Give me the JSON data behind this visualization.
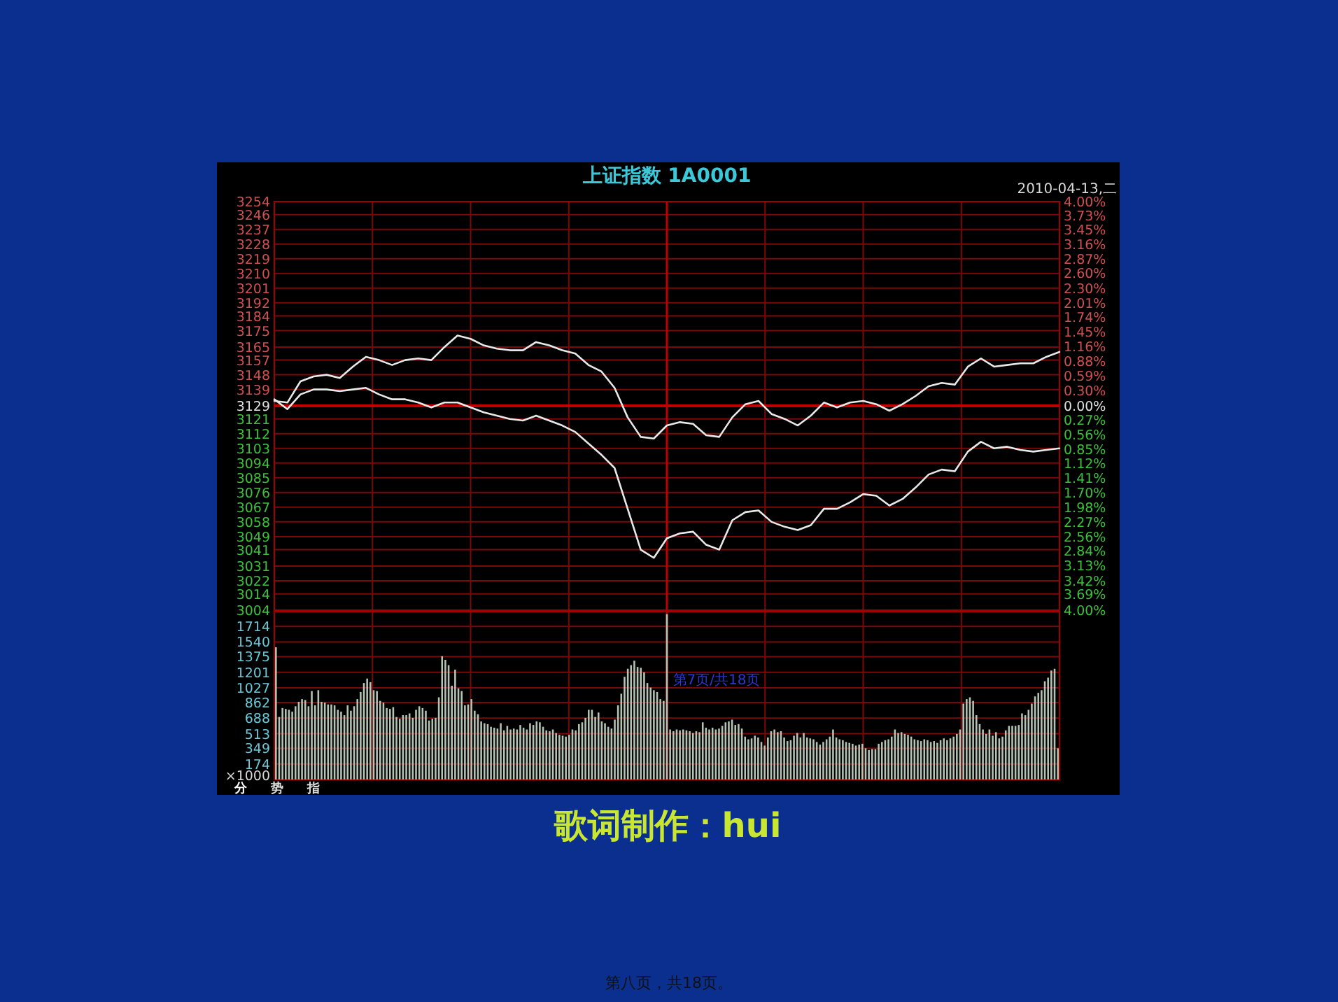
{
  "chart_data": [
    {
      "type": "line",
      "title": "上证指数 1A0001",
      "subtitle": "2010-04-13,二",
      "grid": true,
      "categories": [
        null,
        null,
        null,
        null,
        null,
        null,
        null,
        null,
        null,
        null,
        null,
        null,
        null,
        null,
        null,
        null,
        null,
        null,
        null,
        null,
        null,
        null,
        null,
        null,
        null,
        null,
        null,
        null,
        null,
        null,
        null,
        null,
        null,
        null,
        null,
        null,
        null,
        null,
        null,
        null,
        null,
        null,
        null,
        null,
        null,
        null,
        null,
        null,
        null,
        null,
        null,
        null,
        null,
        null,
        null,
        null,
        null,
        null,
        null,
        null,
        null
      ],
      "ylim": [
        3004,
        3254
      ],
      "yticks": [
        3254,
        3246,
        3237,
        3228,
        3219,
        3210,
        3201,
        3192,
        3184,
        3175,
        3165,
        3157,
        3148,
        3139,
        3129,
        3121,
        3112,
        3103,
        3094,
        3085,
        3076,
        3067,
        3058,
        3049,
        3041,
        3031,
        3022,
        3014,
        3004
      ],
      "y2lim": [
        -4,
        4
      ],
      "y2ticks": [
        {
          "value": 4,
          "label": "4.00%"
        },
        {
          "value": 3.73,
          "label": "3.73%"
        },
        {
          "value": 3.45,
          "label": "3.45%"
        },
        {
          "value": 3.16,
          "label": "3.16%"
        },
        {
          "value": 2.87,
          "label": "2.87%"
        },
        {
          "value": 2.6,
          "label": "2.60%"
        },
        {
          "value": 2.3,
          "label": "2.30%"
        },
        {
          "value": 2.01,
          "label": "2.01%"
        },
        {
          "value": 1.74,
          "label": "1.74%"
        },
        {
          "value": 1.45,
          "label": "1.45%"
        },
        {
          "value": 1.16,
          "label": "1.16%"
        },
        {
          "value": 0.88,
          "label": "0.88%"
        },
        {
          "value": 0.59,
          "label": "0.59%"
        },
        {
          "value": 0.3,
          "label": "0.30%"
        },
        {
          "value": 0,
          "label": "0.00%"
        },
        {
          "value": -0.27,
          "label": "0.27%"
        },
        {
          "value": -0.56,
          "label": "0.56%"
        },
        {
          "value": -0.85,
          "label": "0.85%"
        },
        {
          "value": -1.12,
          "label": "1.12%"
        },
        {
          "value": -1.41,
          "label": "1.41%"
        },
        {
          "value": -1.7,
          "label": "1.70%"
        },
        {
          "value": -1.98,
          "label": "1.98%"
        },
        {
          "value": -2.27,
          "label": "2.27%"
        },
        {
          "value": -2.56,
          "label": "2.56%"
        },
        {
          "value": -2.84,
          "label": "2.84%"
        },
        {
          "value": -3.13,
          "label": "3.13%"
        },
        {
          "value": -3.42,
          "label": "3.42%"
        },
        {
          "value": -3.69,
          "label": "3.69%"
        },
        {
          "value": -4,
          "label": "4.00%"
        }
      ],
      "ref_lines": [
        {
          "axis": "y",
          "value": 3129,
          "color": "#c00000"
        }
      ],
      "series": [
        {
          "color": "#e8e8e8",
          "values": [
            3132,
            3131,
            3144,
            3147,
            3148,
            3146,
            3153,
            3159,
            3157,
            3154,
            3157,
            3158,
            3157,
            3165,
            3172,
            3170,
            3166,
            3164,
            3163,
            3163,
            3168,
            3166,
            3163,
            3161,
            3154,
            3150,
            3140,
            3122,
            3110,
            3109,
            3117,
            3119,
            3118,
            3111,
            3110,
            3122,
            3130,
            3132,
            3124,
            3121,
            3117,
            3123,
            3131,
            3128,
            3131,
            3132,
            3130,
            3126,
            3130,
            3135,
            3141,
            3143,
            3142,
            3153,
            3158,
            3153,
            3154,
            3155,
            3155,
            3159,
            3162
          ]
        },
        {
          "color": "#e8e8e8",
          "values": [
            3133,
            3127,
            3136,
            3139,
            3139,
            3138,
            3139,
            3140,
            3136,
            3133,
            3133,
            3131,
            3128,
            3131,
            3131,
            3128,
            3125,
            3123,
            3121,
            3120,
            3123,
            3120,
            3117,
            3113,
            3106,
            3099,
            3091,
            3066,
            3041,
            3036,
            3048,
            3051,
            3052,
            3044,
            3041,
            3059,
            3064,
            3065,
            3058,
            3055,
            3053,
            3056,
            3066,
            3066,
            3070,
            3075,
            3074,
            3068,
            3072,
            3079,
            3087,
            3090,
            3089,
            3101,
            3107,
            3103,
            3104,
            3102,
            3101,
            3102,
            3103
          ]
        }
      ]
    },
    {
      "type": "bar",
      "ylabel": "×1000",
      "grid": true,
      "color": "#b4c4b4",
      "categories": [
        null,
        null,
        null,
        null,
        null,
        null,
        null,
        null,
        null,
        null,
        null,
        null,
        null,
        null,
        null,
        null,
        null,
        null,
        null,
        null,
        null,
        null,
        null,
        null,
        null,
        null,
        null,
        null,
        null,
        null,
        null,
        null,
        null,
        null,
        null,
        null,
        null,
        null,
        null,
        null,
        null,
        null,
        null,
        null,
        null,
        null,
        null,
        null,
        null,
        null,
        null,
        null,
        null,
        null,
        null,
        null,
        null,
        null,
        null,
        null,
        null,
        null,
        null,
        null,
        null,
        null,
        null,
        null,
        null,
        null,
        null,
        null,
        null,
        null,
        null,
        null,
        null,
        null,
        null,
        null,
        null,
        null,
        null,
        null,
        null,
        null,
        null,
        null,
        null,
        null,
        null,
        null,
        null,
        null,
        null,
        null,
        null,
        null,
        null,
        null,
        null,
        null,
        null,
        null,
        null,
        null,
        null,
        null,
        null,
        null,
        null,
        null,
        null,
        null,
        null,
        null,
        null,
        null,
        null,
        null,
        null,
        null,
        null,
        null,
        null,
        null,
        null,
        null,
        null,
        null,
        null,
        null,
        null,
        null,
        null,
        null,
        null,
        null,
        null,
        null,
        null,
        null,
        null,
        null,
        null,
        null,
        null,
        null,
        null,
        null,
        null,
        null,
        null,
        null,
        null,
        null,
        null,
        null,
        null,
        null,
        null,
        null,
        null,
        null,
        null,
        null,
        null,
        null,
        null,
        null,
        null,
        null,
        null,
        null,
        null,
        null,
        null,
        null,
        null,
        null,
        null,
        null,
        null,
        null,
        null,
        null,
        null,
        null,
        null,
        null,
        null,
        null,
        null,
        null,
        null,
        null,
        null,
        null,
        null,
        null,
        null,
        null,
        null,
        null,
        null,
        null,
        null,
        null,
        null,
        null,
        null,
        null,
        null,
        null,
        null,
        null,
        null,
        null,
        null,
        null,
        null,
        null,
        null,
        null,
        null,
        null,
        null,
        null,
        null,
        null,
        null,
        null,
        null,
        null,
        null,
        null,
        null,
        null,
        null,
        null,
        null
      ],
      "ylim": [
        0,
        1880
      ],
      "yticks": [
        174,
        349,
        513,
        688,
        862,
        1027,
        1201,
        1375,
        1540,
        1714
      ],
      "annotations": [
        "歌词制作：hui",
        "第7页/共18页",
        "分",
        "势",
        "指",
        "第八页，共18页。"
      ],
      "values": [
        1480,
        700,
        800,
        790,
        780,
        760,
        820,
        870,
        900,
        890,
        820,
        990,
        830,
        1000,
        870,
        860,
        840,
        840,
        830,
        780,
        760,
        720,
        830,
        770,
        820,
        900,
        980,
        1080,
        1130,
        1090,
        1000,
        990,
        880,
        860,
        800,
        790,
        810,
        700,
        680,
        720,
        720,
        740,
        690,
        780,
        820,
        800,
        770,
        660,
        680,
        690,
        920,
        1380,
        1340,
        1280,
        1050,
        1230,
        1020,
        990,
        830,
        840,
        900,
        770,
        730,
        650,
        630,
        620,
        590,
        580,
        570,
        630,
        550,
        600,
        560,
        570,
        560,
        610,
        580,
        560,
        630,
        610,
        650,
        640,
        590,
        550,
        540,
        560,
        520,
        500,
        490,
        480,
        500,
        560,
        550,
        620,
        640,
        690,
        780,
        780,
        700,
        750,
        650,
        630,
        590,
        570,
        670,
        830,
        960,
        1150,
        1240,
        1280,
        1330,
        1260,
        1250,
        1200,
        1080,
        1030,
        1000,
        980,
        900,
        880,
        1850,
        560,
        540,
        560,
        550,
        560,
        550,
        540,
        520,
        540,
        530,
        640,
        580,
        560,
        580,
        560,
        570,
        600,
        640,
        650,
        670,
        610,
        620,
        570,
        480,
        450,
        460,
        490,
        470,
        420,
        380,
        470,
        540,
        560,
        530,
        540,
        470,
        430,
        440,
        490,
        520,
        470,
        520,
        470,
        460,
        450,
        420,
        390,
        420,
        450,
        480,
        560,
        470,
        450,
        440,
        420,
        410,
        400,
        380,
        390,
        400,
        350,
        330,
        340,
        340,
        400,
        420,
        440,
        450,
        480,
        560,
        520,
        530,
        510,
        500,
        480,
        450,
        440,
        430,
        450,
        440,
        420,
        430,
        410,
        440,
        460,
        440,
        460,
        480,
        510,
        560,
        850,
        900,
        920,
        880,
        720,
        620,
        560,
        510,
        560,
        490,
        530,
        460,
        480,
        550,
        600,
        600,
        600,
        610,
        740,
        720,
        780,
        850,
        930,
        970,
        1000,
        1100,
        1140,
        1220,
        1240,
        350
      ]
    }
  ]
}
